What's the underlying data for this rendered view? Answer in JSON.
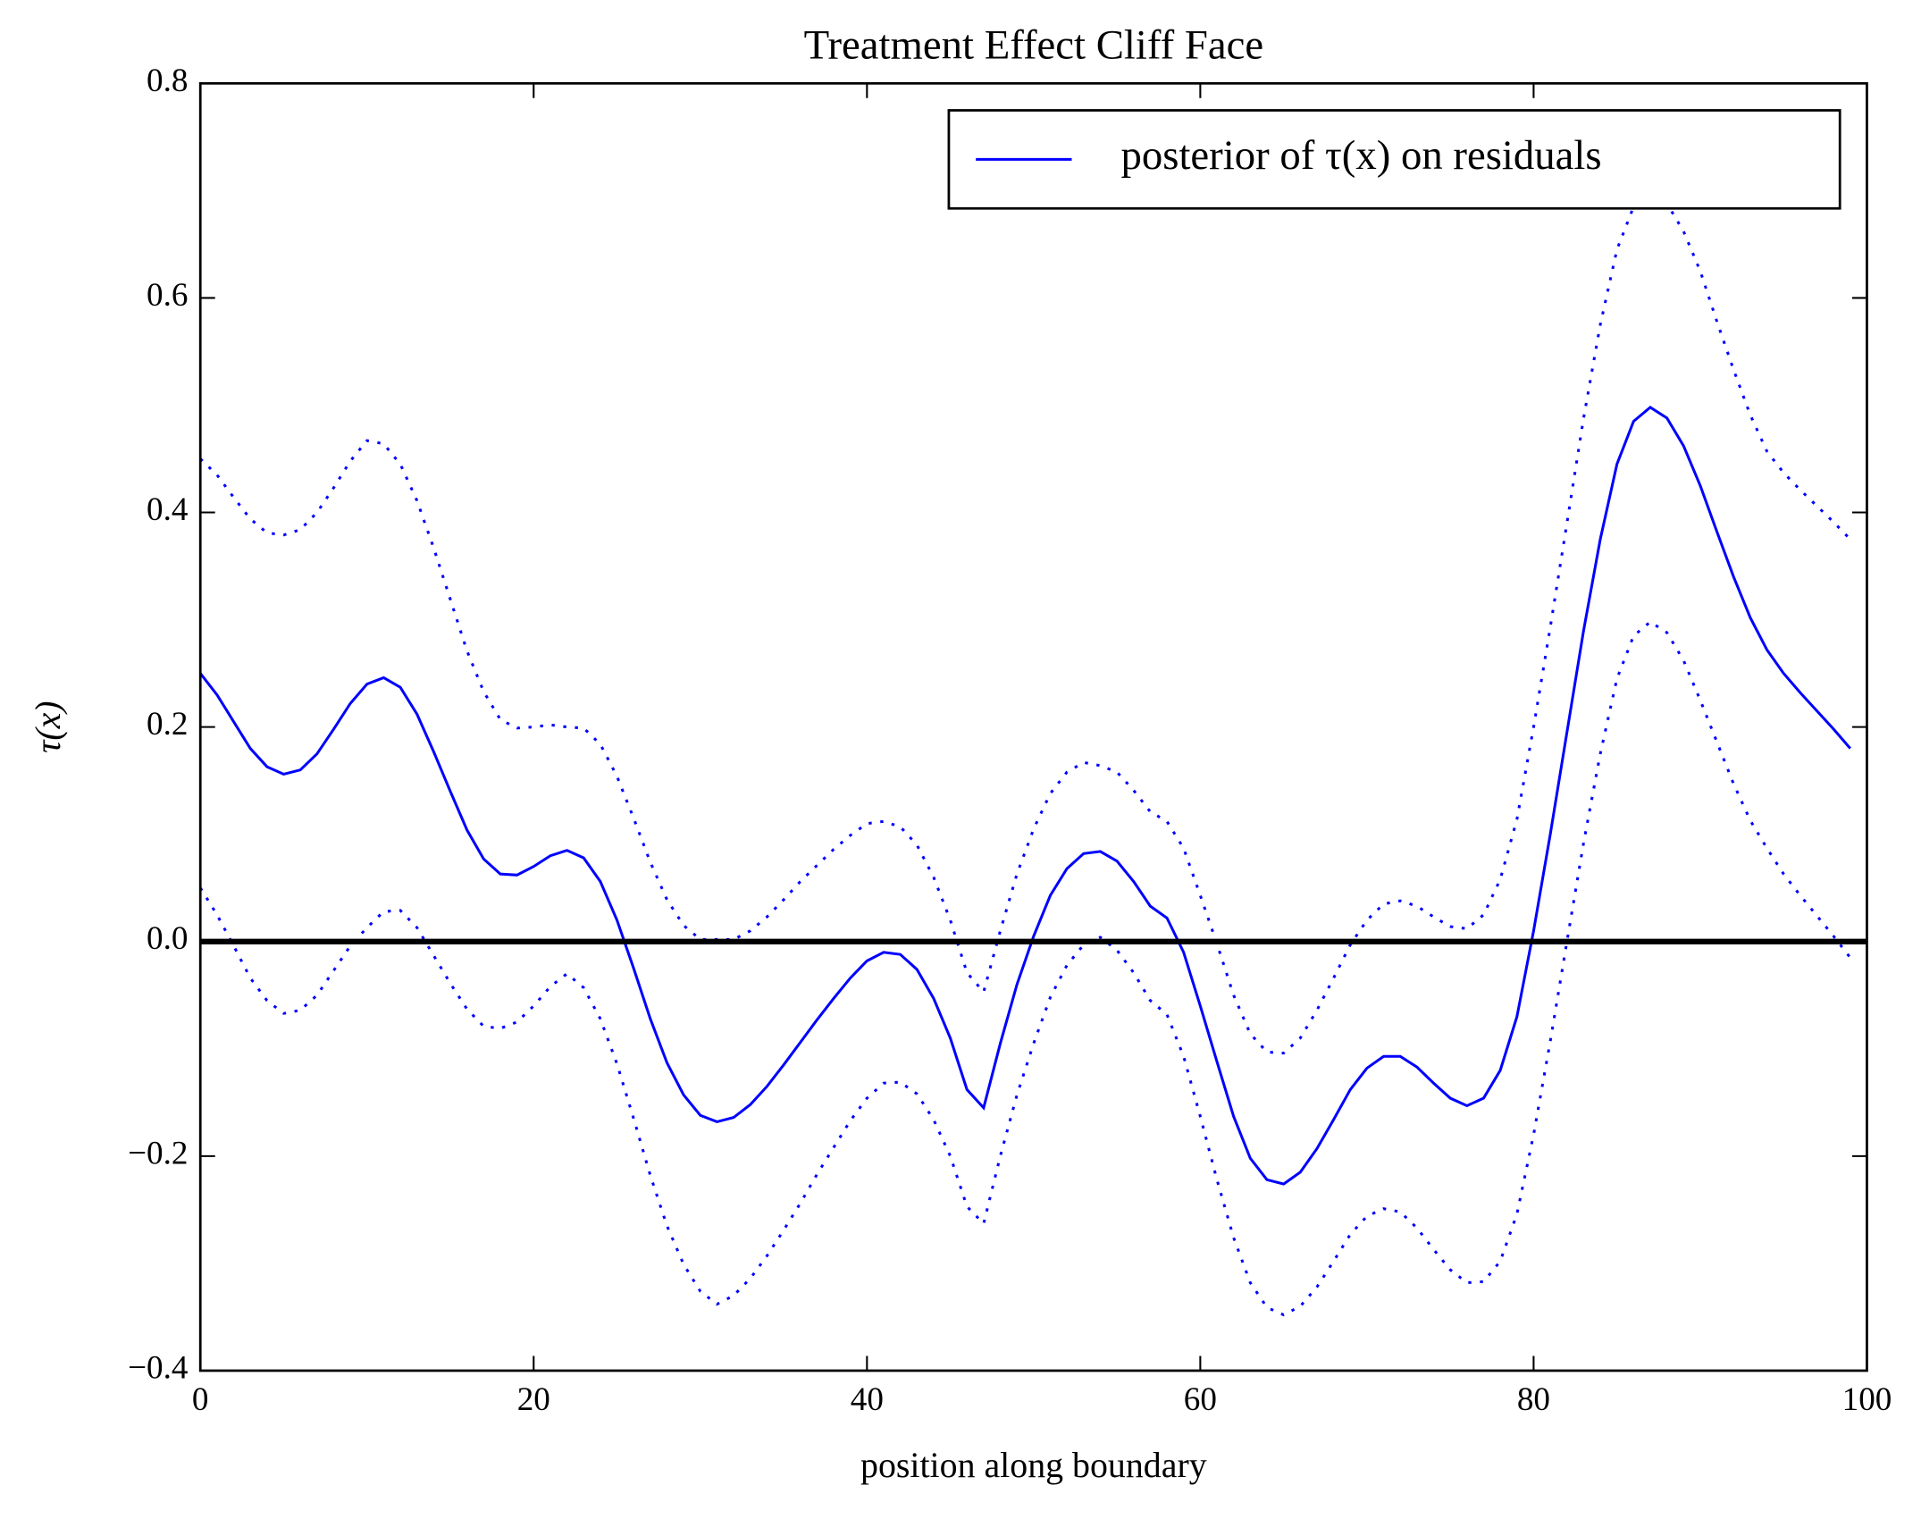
{
  "chart_data": {
    "type": "line",
    "title": "Treatment Effect Cliff Face",
    "xlabel": "position along boundary",
    "ylabel": "τ(x)",
    "xlim": [
      0,
      100
    ],
    "ylim": [
      -0.4,
      0.8
    ],
    "xticks": [
      0,
      20,
      40,
      60,
      80,
      100
    ],
    "yticks": [
      {
        "value": -0.4,
        "label": "−0.4"
      },
      {
        "value": -0.2,
        "label": "−0.2"
      },
      {
        "value": 0,
        "label": "0.0"
      },
      0.2,
      0.4,
      0.6,
      0.8
    ],
    "legend": "upper right",
    "reference_line": 0,
    "x": [
      0,
      1,
      2,
      3,
      4,
      5,
      6,
      7,
      8,
      9,
      10,
      11,
      12,
      13,
      14,
      15,
      16,
      17,
      18,
      19,
      20,
      21,
      22,
      23,
      24,
      25,
      26,
      27,
      28,
      29,
      30,
      31,
      32,
      33,
      34,
      35,
      36,
      37,
      38,
      39,
      40,
      41,
      42,
      43,
      44,
      45,
      46,
      47,
      48,
      49,
      50,
      51,
      52,
      53,
      54,
      55,
      56,
      57,
      58,
      59,
      60,
      61,
      62,
      63,
      64,
      65,
      66,
      67,
      68,
      69,
      70,
      71,
      72,
      73,
      74,
      75,
      76,
      77,
      78,
      79,
      80,
      81,
      82,
      83,
      84,
      85,
      86,
      87,
      88,
      89,
      90,
      91,
      92,
      93,
      94,
      95,
      96,
      97,
      98,
      99
    ],
    "series": [
      {
        "name": "posterior of τ(x) on residuals",
        "color": "#0000ff",
        "style": "solid",
        "values": [
          0.25,
          0.23,
          0.205,
          0.18,
          0.163,
          0.156,
          0.16,
          0.175,
          0.198,
          0.222,
          0.24,
          0.246,
          0.237,
          0.212,
          0.177,
          0.14,
          0.104,
          0.077,
          0.063,
          0.062,
          0.07,
          0.08,
          0.085,
          0.078,
          0.056,
          0.02,
          -0.025,
          -0.072,
          -0.113,
          -0.143,
          -0.162,
          -0.168,
          -0.164,
          -0.152,
          -0.135,
          -0.115,
          -0.094,
          -0.073,
          -0.053,
          -0.034,
          -0.018,
          -0.01,
          -0.012,
          -0.026,
          -0.053,
          -0.09,
          -0.138,
          -0.155,
          -0.095,
          -0.04,
          0.005,
          0.043,
          0.068,
          0.082,
          0.084,
          0.075,
          0.056,
          0.033,
          0.022,
          -0.01,
          -0.06,
          -0.112,
          -0.163,
          -0.202,
          -0.222,
          -0.226,
          -0.215,
          -0.193,
          -0.166,
          -0.138,
          -0.118,
          -0.107,
          -0.107,
          -0.117,
          -0.132,
          -0.146,
          -0.153,
          -0.146,
          -0.12,
          -0.07,
          0.01,
          0.1,
          0.195,
          0.29,
          0.375,
          0.445,
          0.485,
          0.498,
          0.488,
          0.462,
          0.425,
          0.382,
          0.34,
          0.302,
          0.272,
          0.25,
          0.232,
          0.215,
          0.198,
          0.18
        ]
      },
      {
        "color": "#0000ff",
        "style": "dotted",
        "values": [
          0.45,
          0.435,
          0.414,
          0.394,
          0.381,
          0.379,
          0.384,
          0.4,
          0.423,
          0.448,
          0.467,
          0.464,
          0.445,
          0.411,
          0.367,
          0.319,
          0.271,
          0.233,
          0.207,
          0.199,
          0.2,
          0.202,
          0.2,
          0.199,
          0.184,
          0.154,
          0.115,
          0.074,
          0.039,
          0.015,
          0.002,
          0.002,
          0.002,
          0.01,
          0.023,
          0.039,
          0.056,
          0.071,
          0.086,
          0.099,
          0.11,
          0.112,
          0.107,
          0.09,
          0.06,
          0.02,
          -0.029,
          -0.047,
          0.01,
          0.063,
          0.105,
          0.138,
          0.158,
          0.167,
          0.164,
          0.158,
          0.141,
          0.121,
          0.112,
          0.087,
          0.043,
          -0.002,
          -0.05,
          -0.086,
          -0.103,
          -0.104,
          -0.09,
          -0.064,
          -0.034,
          -0.003,
          0.02,
          0.035,
          0.038,
          0.033,
          0.023,
          0.014,
          0.012,
          0.025,
          0.058,
          0.114,
          0.2,
          0.293,
          0.39,
          0.488,
          0.575,
          0.645,
          0.685,
          0.698,
          0.688,
          0.662,
          0.625,
          0.578,
          0.533,
          0.491,
          0.457,
          0.437,
          0.421,
          0.406,
          0.391,
          0.375
        ]
      },
      {
        "color": "#0000ff",
        "style": "dotted",
        "values": [
          0.05,
          0.025,
          -0.004,
          -0.034,
          -0.055,
          -0.067,
          -0.064,
          -0.05,
          -0.027,
          -0.004,
          0.013,
          0.028,
          0.029,
          0.013,
          -0.013,
          -0.039,
          -0.063,
          -0.079,
          -0.081,
          -0.075,
          -0.06,
          -0.042,
          -0.03,
          -0.043,
          -0.072,
          -0.114,
          -0.165,
          -0.218,
          -0.265,
          -0.301,
          -0.326,
          -0.338,
          -0.33,
          -0.314,
          -0.293,
          -0.269,
          -0.244,
          -0.217,
          -0.192,
          -0.167,
          -0.146,
          -0.132,
          -0.131,
          -0.142,
          -0.166,
          -0.2,
          -0.247,
          -0.263,
          -0.2,
          -0.143,
          -0.095,
          -0.052,
          -0.022,
          -0.003,
          0.004,
          -0.008,
          -0.029,
          -0.055,
          -0.068,
          -0.107,
          -0.163,
          -0.222,
          -0.276,
          -0.318,
          -0.341,
          -0.348,
          -0.34,
          -0.322,
          -0.298,
          -0.273,
          -0.256,
          -0.249,
          -0.252,
          -0.267,
          -0.287,
          -0.306,
          -0.318,
          -0.317,
          -0.298,
          -0.254,
          -0.18,
          -0.093,
          0,
          0.092,
          0.175,
          0.245,
          0.285,
          0.298,
          0.288,
          0.262,
          0.225,
          0.186,
          0.147,
          0.113,
          0.087,
          0.063,
          0.043,
          0.024,
          0.005,
          -0.015
        ]
      }
    ]
  }
}
